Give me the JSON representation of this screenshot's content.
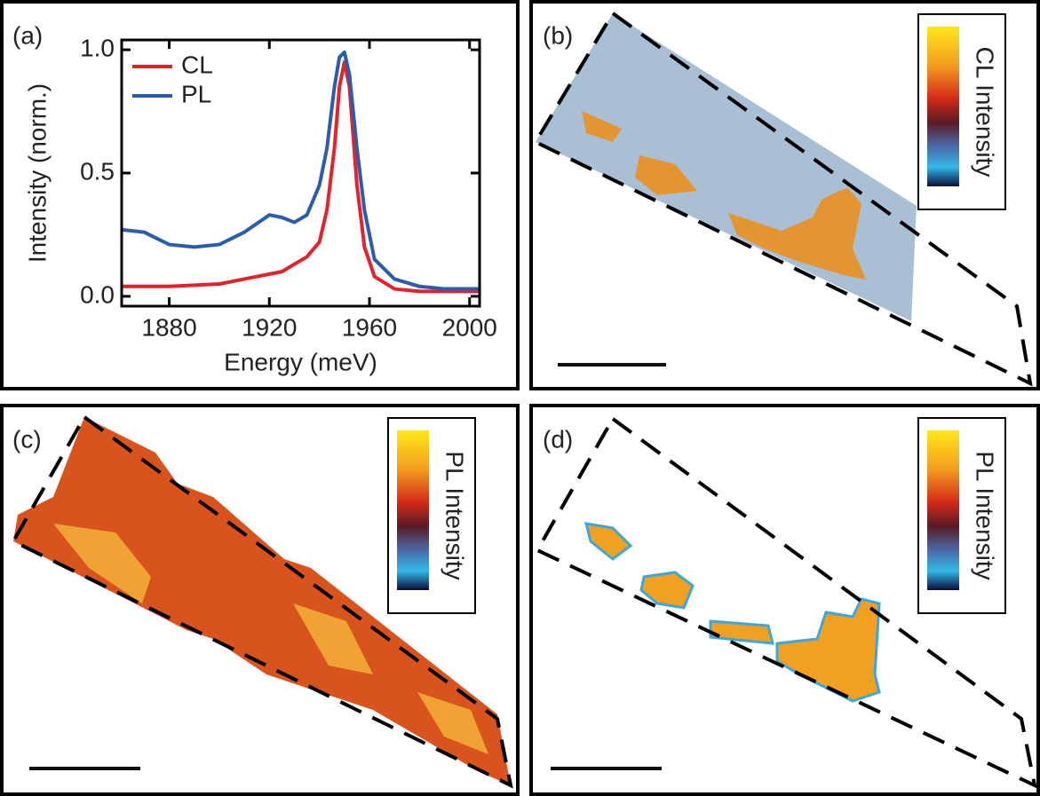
{
  "chart_data": {
    "type": "line",
    "panel_label": "(a)",
    "xlabel": "Energy (meV)",
    "ylabel": "Intensity (norm.)",
    "x": [
      1861,
      1870,
      1880,
      1890,
      1900,
      1910,
      1920,
      1925,
      1930,
      1935,
      1940,
      1943,
      1946,
      1948,
      1950,
      1952,
      1955,
      1958,
      1962,
      1970,
      1980,
      1990,
      2004
    ],
    "series": [
      {
        "name": "CL",
        "color": "#e8202a",
        "values": [
          0.04,
          0.04,
          0.04,
          0.045,
          0.05,
          0.07,
          0.09,
          0.1,
          0.13,
          0.16,
          0.22,
          0.35,
          0.6,
          0.85,
          0.95,
          0.85,
          0.45,
          0.2,
          0.08,
          0.03,
          0.02,
          0.02,
          0.02
        ]
      },
      {
        "name": "PL",
        "color": "#2a5db0",
        "values": [
          0.27,
          0.26,
          0.21,
          0.2,
          0.21,
          0.26,
          0.33,
          0.32,
          0.3,
          0.33,
          0.45,
          0.6,
          0.85,
          0.97,
          0.99,
          0.9,
          0.6,
          0.35,
          0.15,
          0.07,
          0.04,
          0.03,
          0.03
        ]
      }
    ],
    "xlim": [
      1861,
      2004
    ],
    "ylim": [
      -0.04,
      1.04
    ],
    "xticks": [
      1880,
      1920,
      1960,
      2000
    ],
    "yticks": [
      {
        "value": 0,
        "label": "0.0"
      },
      {
        "value": 0.5,
        "label": "0.5"
      },
      {
        "value": 1,
        "label": "1.0"
      }
    ],
    "legend": "upper left"
  },
  "panels": [
    {
      "label": "(b)",
      "colorbar_label": "CL Intensity"
    },
    {
      "label": "(c)",
      "colorbar_label": "PL Intensity"
    },
    {
      "label": "(d)",
      "colorbar_label": "PL Intensity"
    }
  ]
}
